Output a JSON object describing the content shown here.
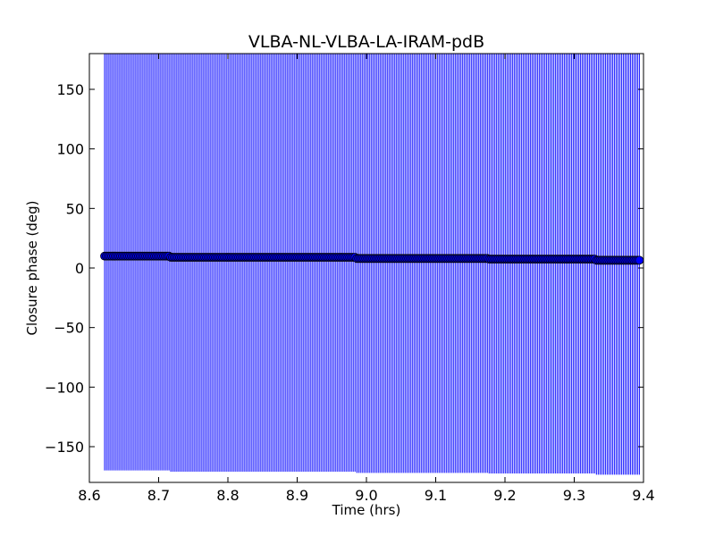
{
  "chart_data": {
    "type": "scatter",
    "title": "VLBA-NL-VLBA-LA-IRAM-pdB",
    "xlabel": "Time (hrs)",
    "ylabel": "Closure phase (deg)",
    "xlim": [
      8.6,
      9.4
    ],
    "ylim": [
      -180,
      180
    ],
    "xticks": [
      8.6,
      8.7,
      8.8,
      8.9,
      9.0,
      9.1,
      9.2,
      9.3,
      9.4
    ],
    "xtick_labels": [
      "8.6",
      "8.7",
      "8.8",
      "8.9",
      "9.0",
      "9.1",
      "9.2",
      "9.3",
      "9.4"
    ],
    "yticks": [
      -150,
      -100,
      -50,
      0,
      50,
      100,
      150
    ],
    "ytick_labels": [
      "−150",
      "−100",
      "−50",
      "0",
      "50",
      "100",
      "150"
    ],
    "grid": false,
    "marker_color": "#0000ff",
    "errorbar_color": "#0000ff",
    "series": [
      {
        "x_start": 8.622,
        "x_end": 9.394,
        "n_points": 300,
        "segments": [
          {
            "x_from": 8.622,
            "x_to": 8.715,
            "y": 10
          },
          {
            "x_from": 8.715,
            "x_to": 8.985,
            "y": 9
          },
          {
            "x_from": 8.985,
            "x_to": 9.175,
            "y": 8
          },
          {
            "x_from": 9.175,
            "x_to": 9.33,
            "y": 7.5
          },
          {
            "x_from": 9.33,
            "x_to": 9.394,
            "y": 6.5
          }
        ],
        "error": 180
      }
    ]
  }
}
